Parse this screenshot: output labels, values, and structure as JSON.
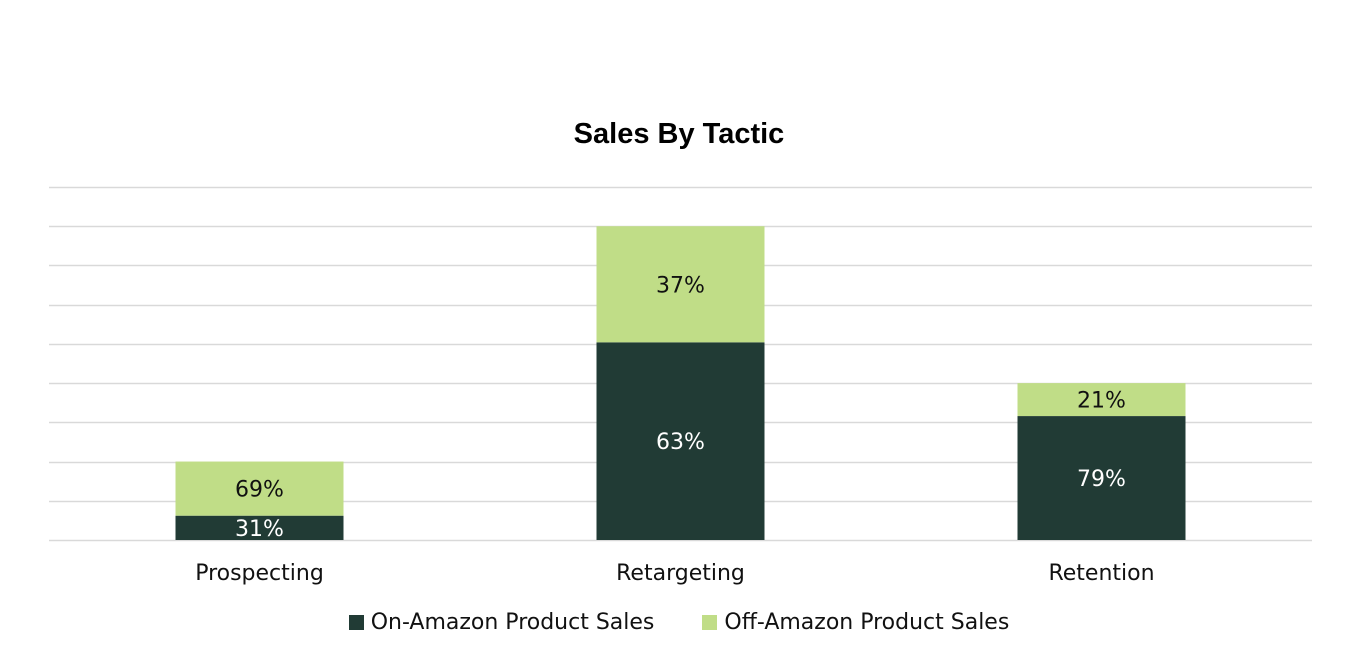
{
  "chart_data": {
    "type": "bar",
    "stacked": true,
    "title": "Sales By Tactic",
    "categories": [
      "Prospecting",
      "Retargeting",
      "Retention"
    ],
    "totals": [
      200,
      800,
      400
    ],
    "ylim": [
      0,
      900
    ],
    "grid": true,
    "series": [
      {
        "name": "On-Amazon Product Sales",
        "color": "#213b35",
        "label_color": "#ffffff",
        "shares": [
          0.31,
          0.63,
          0.79
        ],
        "labels": [
          "31%",
          "63%",
          "79%"
        ]
      },
      {
        "name": "Off-Amazon Product Sales",
        "color": "#c0dd87",
        "label_color": "#111111",
        "shares": [
          0.69,
          0.37,
          0.21
        ],
        "labels": [
          "69%",
          "37%",
          "21%"
        ]
      }
    ],
    "legend": "bottom",
    "gridline_color": "#d9d9d9"
  }
}
